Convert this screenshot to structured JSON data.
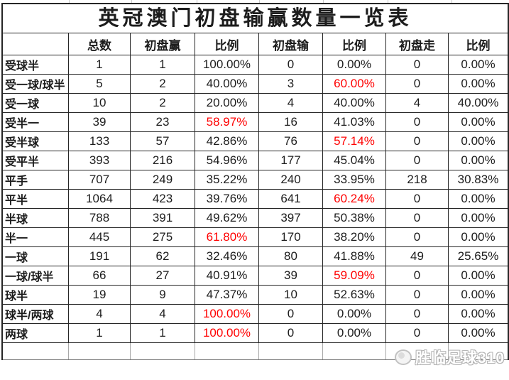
{
  "title": "英冠澳门初盘输赢数量一览表",
  "table": {
    "columns": [
      "",
      "总数",
      "初盘赢",
      "比例",
      "初盘输",
      "比例",
      "初盘走",
      "比例"
    ],
    "rows": [
      {
        "label": "受球半",
        "cells": [
          "1",
          "1",
          "100.00%",
          "0",
          "0.00%",
          "0",
          "0.00%"
        ],
        "red": []
      },
      {
        "label": "受一球/球半",
        "cells": [
          "5",
          "2",
          "40.00%",
          "3",
          "60.00%",
          "0",
          "0.00%"
        ],
        "red": [
          4
        ]
      },
      {
        "label": "受一球",
        "cells": [
          "10",
          "2",
          "20.00%",
          "4",
          "40.00%",
          "4",
          "40.00%"
        ],
        "red": []
      },
      {
        "label": "受半一",
        "cells": [
          "39",
          "23",
          "58.97%",
          "16",
          "41.03%",
          "0",
          "0.00%"
        ],
        "red": [
          2
        ]
      },
      {
        "label": "受半球",
        "cells": [
          "133",
          "57",
          "42.86%",
          "76",
          "57.14%",
          "0",
          "0.00%"
        ],
        "red": [
          4
        ]
      },
      {
        "label": "受平半",
        "cells": [
          "393",
          "216",
          "54.96%",
          "177",
          "45.04%",
          "0",
          "0.00%"
        ],
        "red": []
      },
      {
        "label": "平手",
        "cells": [
          "707",
          "249",
          "35.22%",
          "240",
          "33.95%",
          "218",
          "30.83%"
        ],
        "red": []
      },
      {
        "label": "平半",
        "cells": [
          "1064",
          "423",
          "39.76%",
          "641",
          "60.24%",
          "0",
          "0.00%"
        ],
        "red": [
          4
        ]
      },
      {
        "label": "半球",
        "cells": [
          "788",
          "391",
          "49.62%",
          "397",
          "50.38%",
          "0",
          "0.00%"
        ],
        "red": []
      },
      {
        "label": "半一",
        "cells": [
          "445",
          "275",
          "61.80%",
          "170",
          "38.20%",
          "0",
          "0.00%"
        ],
        "red": [
          2
        ]
      },
      {
        "label": "一球",
        "cells": [
          "191",
          "62",
          "32.46%",
          "80",
          "41.88%",
          "49",
          "25.65%"
        ],
        "red": []
      },
      {
        "label": "一球/球半",
        "cells": [
          "66",
          "27",
          "40.91%",
          "39",
          "59.09%",
          "0",
          "0.00%"
        ],
        "red": [
          4
        ]
      },
      {
        "label": "球半",
        "cells": [
          "19",
          "9",
          "47.37%",
          "10",
          "52.63%",
          "0",
          "0.00%"
        ],
        "red": []
      },
      {
        "label": "球半/两球",
        "cells": [
          "4",
          "4",
          "100.00%",
          "0",
          "0.00%",
          "0",
          "0.00%"
        ],
        "red": [
          2
        ]
      },
      {
        "label": "两球",
        "cells": [
          "1",
          "1",
          "100.00%",
          "0",
          "0.00%",
          "0",
          "0.00%"
        ],
        "red": [
          2
        ]
      }
    ]
  },
  "watermark": {
    "text": "胜临足球310",
    "icon": "badge-logo-icon"
  },
  "colors": {
    "highlight_red": "#ff0000",
    "text": "#1c1c1c",
    "border_dark": "#262626",
    "grid_light": "#a8a8a8",
    "watermark_gray": "#b3b3b3"
  }
}
